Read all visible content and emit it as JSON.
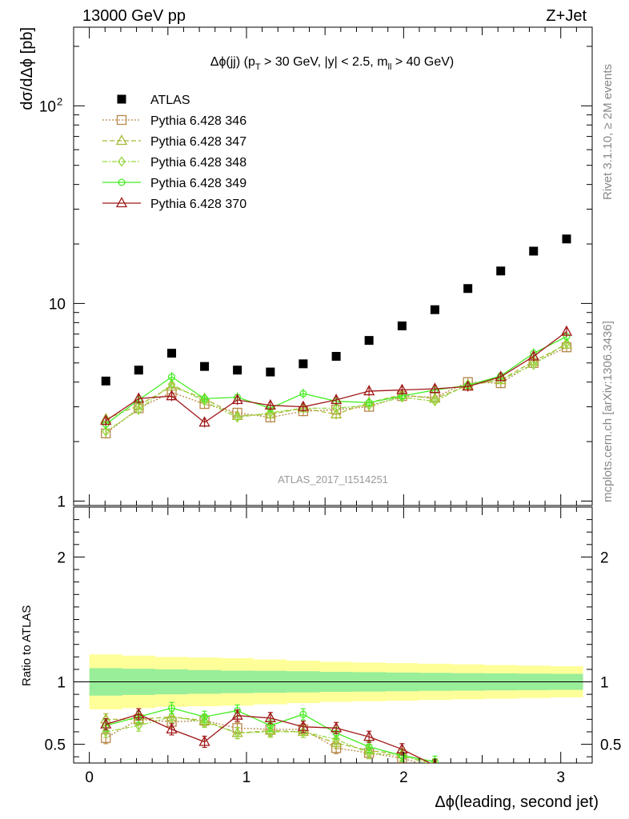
{
  "header": {
    "left": "13000 GeV pp",
    "right": "Z+Jet"
  },
  "side_labels": {
    "rivet": "Rivet 3.1.10, ≥ 2M events",
    "mcplots": "mcplots.cern.ch [arXiv:1306.3436]"
  },
  "chart_data": [
    {
      "type": "scatter",
      "title": "Δϕ(jj) (p_T > 30 GeV, |y| < 2.5, m_ll > 40 GeV)",
      "title_parts": {
        "a": "Δϕ(jj) (p",
        "a_sub": "T",
        "b": " > 30 GeV, |y| < 2.5, m",
        "b_sub": "ll",
        "c": " > 40 GeV)"
      },
      "ylabel": "dσ/dΔϕ [pb]",
      "yscale": "log",
      "ylim": [
        0.95,
        250
      ],
      "xlim": [
        -0.1,
        3.2
      ],
      "y_ticks": [
        {
          "value": 1,
          "label": "1"
        },
        {
          "value": 10,
          "label": "10"
        },
        {
          "value": 100,
          "label": "10",
          "sup": "2"
        }
      ],
      "watermark": "ATLAS_2017_I1514251",
      "legend_position": "top-left",
      "x": [
        0.105,
        0.314,
        0.524,
        0.733,
        0.942,
        1.152,
        1.361,
        1.571,
        1.78,
        1.99,
        2.199,
        2.409,
        2.618,
        2.827,
        3.037
      ],
      "data_series": {
        "name": "ATLAS",
        "values": [
          4.05,
          4.6,
          5.6,
          4.8,
          4.6,
          4.5,
          4.95,
          5.4,
          6.5,
          7.7,
          9.3,
          11.9,
          14.6,
          18.4,
          21.2
        ]
      },
      "series": [
        {
          "name": "Pythia 6.428 346",
          "color": "#b8874a",
          "marker": "square",
          "dash": "2,2",
          "values": [
            2.2,
            2.95,
            3.55,
            3.1,
            2.8,
            2.65,
            2.85,
            2.9,
            3.0,
            3.4,
            3.35,
            4.0,
            3.95,
            5.0,
            6.0
          ]
        },
        {
          "name": "Pythia 6.428 347",
          "color": "#a8b832",
          "marker": "triangle",
          "dash": "6,3",
          "values": [
            2.6,
            3.05,
            3.8,
            3.3,
            2.7,
            2.75,
            2.95,
            2.75,
            3.15,
            3.45,
            3.3,
            3.85,
            4.1,
            5.1,
            6.2
          ]
        },
        {
          "name": "Pythia 6.428 348",
          "color": "#98d640",
          "marker": "diamond",
          "dash": "6,2,2,2",
          "values": [
            2.25,
            2.9,
            3.9,
            3.2,
            2.65,
            2.8,
            2.95,
            2.95,
            3.05,
            3.35,
            3.2,
            3.9,
            4.1,
            4.9,
            6.3
          ]
        },
        {
          "name": "Pythia 6.428 349",
          "color": "#44ee22",
          "marker": "circle",
          "dash": "",
          "values": [
            2.45,
            3.25,
            4.25,
            3.3,
            3.35,
            2.95,
            3.5,
            3.2,
            3.15,
            3.4,
            3.65,
            3.85,
            4.3,
            5.6,
            6.8
          ]
        },
        {
          "name": "Pythia 6.428 370",
          "color": "#a01818",
          "marker": "triangle",
          "dash": "",
          "values": [
            2.55,
            3.3,
            3.4,
            2.5,
            3.25,
            3.05,
            3.0,
            3.25,
            3.6,
            3.65,
            3.7,
            3.8,
            4.25,
            5.4,
            7.2
          ]
        }
      ]
    },
    {
      "type": "scatter",
      "ylabel": "Ratio to ATLAS",
      "xlabel": "Δϕ(leading, second jet)",
      "yscale": "linear",
      "ylim": [
        0.35,
        2.4
      ],
      "xlim": [
        -0.1,
        3.2
      ],
      "x_ticks": [
        {
          "value": 0,
          "label": "0"
        },
        {
          "value": 1,
          "label": "1"
        },
        {
          "value": 2,
          "label": "2"
        },
        {
          "value": 3,
          "label": "3"
        }
      ],
      "y_ticks": [
        {
          "value": 0.5,
          "label": "0.5"
        },
        {
          "value": 1,
          "label": "1"
        },
        {
          "value": 2,
          "label": "2"
        }
      ],
      "band_outer": {
        "color": "#ffff99",
        "half_widths": [
          0.22,
          0.21,
          0.2,
          0.195,
          0.19,
          0.18,
          0.17,
          0.16,
          0.155,
          0.15,
          0.145,
          0.14,
          0.135,
          0.13,
          0.125
        ]
      },
      "band_inner": {
        "color": "#99ee99",
        "half_widths": [
          0.11,
          0.105,
          0.1,
          0.095,
          0.09,
          0.088,
          0.085,
          0.08,
          0.078,
          0.075,
          0.072,
          0.07,
          0.068,
          0.066,
          0.064
        ]
      },
      "x": [
        0.105,
        0.314,
        0.524,
        0.733,
        0.942,
        1.152,
        1.361,
        1.571,
        1.78,
        1.99,
        2.199
      ],
      "series": [
        {
          "name": "Pythia 6.428 346",
          "values": [
            0.55,
            0.7,
            0.68,
            0.69,
            0.63,
            0.62,
            0.62,
            0.47,
            0.43,
            0.39,
            0.31
          ]
        },
        {
          "name": "Pythia 6.428 347",
          "values": [
            0.7,
            0.7,
            0.72,
            0.69,
            0.59,
            0.61,
            0.6,
            0.51,
            0.45,
            0.42,
            0.34
          ]
        },
        {
          "name": "Pythia 6.428 348",
          "values": [
            0.6,
            0.65,
            0.72,
            0.68,
            0.59,
            0.6,
            0.6,
            0.54,
            0.43,
            0.41,
            0.33
          ]
        },
        {
          "name": "Pythia 6.428 349",
          "values": [
            0.65,
            0.72,
            0.79,
            0.72,
            0.77,
            0.65,
            0.74,
            0.59,
            0.48,
            0.41,
            0.36
          ]
        },
        {
          "name": "Pythia 6.428 370",
          "values": [
            0.66,
            0.74,
            0.62,
            0.52,
            0.73,
            0.71,
            0.64,
            0.63,
            0.56,
            0.46,
            0.33
          ]
        }
      ]
    }
  ]
}
